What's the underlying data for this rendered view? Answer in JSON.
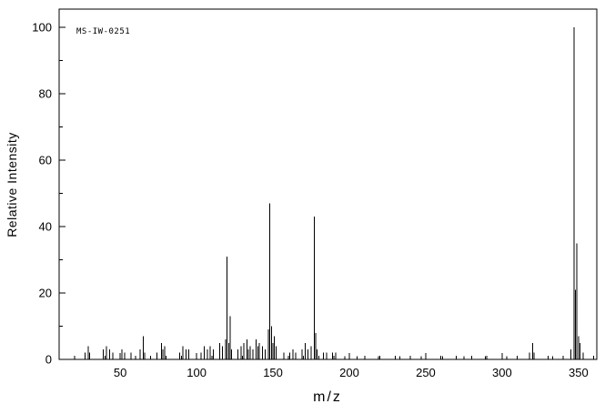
{
  "chart_data": {
    "type": "bar",
    "title": "",
    "annotation": "MS-IW-0251",
    "xlabel": "m/z",
    "ylabel": "Relative Intensity",
    "xlim": [
      10,
      362
    ],
    "ylim": [
      0,
      100
    ],
    "x_ticks": [
      50,
      100,
      150,
      200,
      250,
      300,
      350
    ],
    "y_ticks": [
      0,
      20,
      40,
      60,
      80,
      100
    ],
    "grid": false,
    "legend": false,
    "line_color": "#000000",
    "background_color": "#ffffff",
    "peaks": [
      [
        27,
        2
      ],
      [
        29,
        4
      ],
      [
        30,
        2
      ],
      [
        39,
        3
      ],
      [
        41,
        4
      ],
      [
        43,
        3
      ],
      [
        45,
        2
      ],
      [
        51,
        3
      ],
      [
        53,
        2
      ],
      [
        57,
        2
      ],
      [
        63,
        3
      ],
      [
        65,
        7
      ],
      [
        66,
        2
      ],
      [
        74,
        2
      ],
      [
        77,
        5
      ],
      [
        78,
        3
      ],
      [
        79,
        4
      ],
      [
        89,
        2
      ],
      [
        91,
        4
      ],
      [
        93,
        3
      ],
      [
        95,
        3
      ],
      [
        103,
        2
      ],
      [
        105,
        4
      ],
      [
        107,
        3
      ],
      [
        109,
        4
      ],
      [
        111,
        3
      ],
      [
        115,
        5
      ],
      [
        117,
        4
      ],
      [
        119,
        6
      ],
      [
        120,
        31
      ],
      [
        121,
        5
      ],
      [
        122,
        13
      ],
      [
        123,
        3
      ],
      [
        127,
        3
      ],
      [
        129,
        4
      ],
      [
        131,
        5
      ],
      [
        133,
        6
      ],
      [
        134,
        3
      ],
      [
        135,
        4
      ],
      [
        137,
        3
      ],
      [
        139,
        6
      ],
      [
        140,
        4
      ],
      [
        141,
        5
      ],
      [
        143,
        4
      ],
      [
        145,
        3
      ],
      [
        147,
        9
      ],
      [
        148,
        47
      ],
      [
        149,
        10
      ],
      [
        150,
        5
      ],
      [
        151,
        7
      ],
      [
        152,
        4
      ],
      [
        157,
        2
      ],
      [
        161,
        2
      ],
      [
        163,
        3
      ],
      [
        165,
        2
      ],
      [
        169,
        3
      ],
      [
        171,
        5
      ],
      [
        173,
        3
      ],
      [
        175,
        4
      ],
      [
        177,
        43
      ],
      [
        178,
        8
      ],
      [
        179,
        3
      ],
      [
        183,
        2
      ],
      [
        185,
        2
      ],
      [
        189,
        2
      ],
      [
        191,
        2
      ],
      [
        197,
        1
      ],
      [
        205,
        1
      ],
      [
        219,
        1
      ],
      [
        233,
        1
      ],
      [
        247,
        1
      ],
      [
        261,
        1
      ],
      [
        275,
        1
      ],
      [
        289,
        1
      ],
      [
        303,
        1
      ],
      [
        318,
        2
      ],
      [
        320,
        5
      ],
      [
        321,
        2
      ],
      [
        333,
        1
      ],
      [
        345,
        3
      ],
      [
        347,
        100
      ],
      [
        348,
        21
      ],
      [
        349,
        35
      ],
      [
        350,
        7
      ],
      [
        351,
        5
      ],
      [
        353,
        2
      ]
    ]
  }
}
